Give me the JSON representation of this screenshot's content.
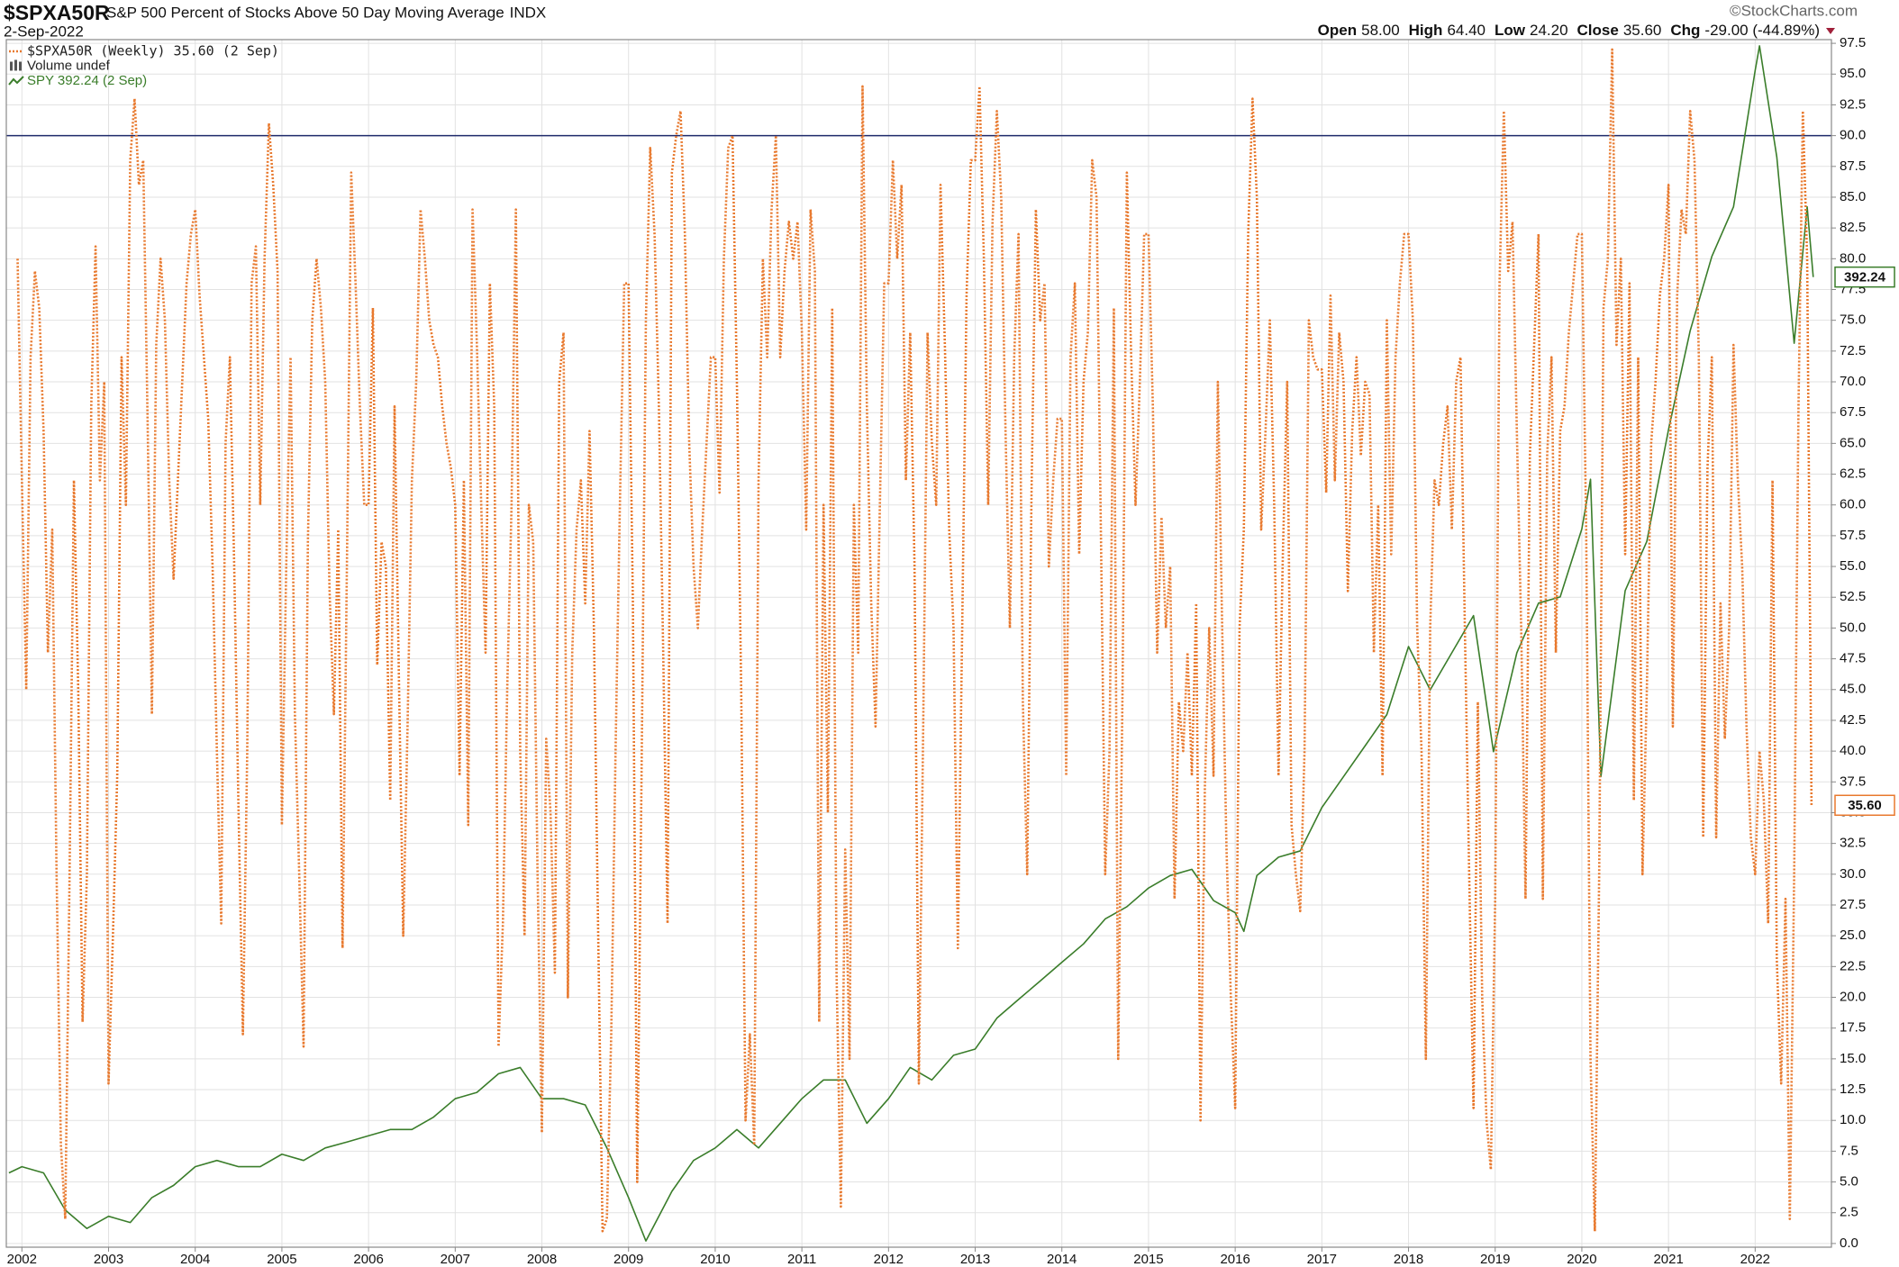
{
  "header": {
    "symbol": "$SPXA50R",
    "name": "S&P 500 Percent of Stocks Above 50 Day Moving Average",
    "exchange": "INDX",
    "date": "2-Sep-2022",
    "credit": "©StockCharts.com",
    "ohlc": [
      {
        "label": "Open",
        "value": "58.00"
      },
      {
        "label": "High",
        "value": "64.40"
      },
      {
        "label": "Low",
        "value": "24.20"
      },
      {
        "label": "Close",
        "value": "35.60"
      },
      {
        "label": "Chg",
        "value": "-29.00 (-44.89%)"
      }
    ]
  },
  "chart_data": {
    "type": "line",
    "grid": true,
    "legend": "top-left",
    "legend_extra": "Volume undef",
    "xlim": [
      2001.82,
      2022.88
    ],
    "xticks": [
      2002,
      2003,
      2004,
      2005,
      2006,
      2007,
      2008,
      2009,
      2010,
      2011,
      2012,
      2013,
      2014,
      2015,
      2016,
      2017,
      2018,
      2019,
      2020,
      2021,
      2022
    ],
    "ylim": [
      -0.3,
      97.8
    ],
    "y2lim": [
      50,
      476
    ],
    "hline": 90,
    "hline_color": "#1f2a6b",
    "yticks": [
      {
        "value": 0,
        "label": "0.0"
      },
      2.5,
      {
        "value": 5,
        "label": "5.0"
      },
      7.5,
      {
        "value": 10,
        "label": "10.0"
      },
      12.5,
      {
        "value": 15,
        "label": "15.0"
      },
      17.5,
      {
        "value": 20,
        "label": "20.0"
      },
      22.5,
      {
        "value": 25,
        "label": "25.0"
      },
      27.5,
      {
        "value": 30,
        "label": "30.0"
      },
      32.5,
      {
        "value": 35,
        "label": "35.0"
      },
      37.5,
      {
        "value": 40,
        "label": "40.0"
      },
      42.5,
      {
        "value": 45,
        "label": "45.0"
      },
      47.5,
      {
        "value": 50,
        "label": "50.0"
      },
      52.5,
      {
        "value": 55,
        "label": "55.0"
      },
      57.5,
      {
        "value": 60,
        "label": "60.0"
      },
      62.5,
      {
        "value": 65,
        "label": "65.0"
      },
      67.5,
      {
        "value": 70,
        "label": "70.0"
      },
      72.5,
      {
        "value": 75,
        "label": "75.0"
      },
      77.5,
      {
        "value": 80,
        "label": "80.0"
      },
      82.5,
      {
        "value": 85,
        "label": "85.0"
      },
      87.5,
      {
        "value": 90,
        "label": "90.0"
      },
      92.5,
      {
        "value": 95,
        "label": "95.0"
      },
      97.5
    ],
    "series": [
      {
        "name": "$SPXA50R (Weekly) 35.60 (2 Sep)",
        "color": "#e8792e",
        "style": "dotted",
        "end_label": "35.60",
        "x": [
          2001.95,
          2002,
          2002.05,
          2002.1,
          2002.15,
          2002.2,
          2002.25,
          2002.3,
          2002.35,
          2002.4,
          2002.45,
          2002.5,
          2002.55,
          2002.6,
          2002.65,
          2002.7,
          2002.75,
          2002.8,
          2002.85,
          2002.9,
          2002.95,
          2003,
          2003.05,
          2003.1,
          2003.15,
          2003.2,
          2003.25,
          2003.3,
          2003.35,
          2003.4,
          2003.45,
          2003.5,
          2003.55,
          2003.6,
          2003.65,
          2003.7,
          2003.75,
          2003.8,
          2003.85,
          2003.9,
          2003.95,
          2004,
          2004.05,
          2004.1,
          2004.15,
          2004.2,
          2004.25,
          2004.3,
          2004.35,
          2004.4,
          2004.45,
          2004.5,
          2004.55,
          2004.6,
          2004.65,
          2004.7,
          2004.75,
          2004.8,
          2004.85,
          2004.9,
          2004.95,
          2005,
          2005.05,
          2005.1,
          2005.15,
          2005.2,
          2005.25,
          2005.3,
          2005.35,
          2005.4,
          2005.45,
          2005.5,
          2005.55,
          2005.6,
          2005.65,
          2005.7,
          2005.75,
          2005.8,
          2005.85,
          2005.9,
          2005.95,
          2006,
          2006.05,
          2006.1,
          2006.15,
          2006.2,
          2006.25,
          2006.3,
          2006.35,
          2006.4,
          2006.45,
          2006.5,
          2006.55,
          2006.6,
          2006.65,
          2006.7,
          2006.75,
          2006.8,
          2006.85,
          2006.9,
          2006.95,
          2007,
          2007.05,
          2007.1,
          2007.15,
          2007.2,
          2007.25,
          2007.3,
          2007.35,
          2007.4,
          2007.45,
          2007.5,
          2007.55,
          2007.6,
          2007.65,
          2007.7,
          2007.75,
          2007.8,
          2007.85,
          2007.9,
          2007.95,
          2008,
          2008.05,
          2008.1,
          2008.15,
          2008.2,
          2008.25,
          2008.3,
          2008.35,
          2008.4,
          2008.45,
          2008.5,
          2008.55,
          2008.6,
          2008.65,
          2008.7,
          2008.75,
          2008.8,
          2008.85,
          2008.9,
          2008.95,
          2009,
          2009.05,
          2009.1,
          2009.15,
          2009.2,
          2009.25,
          2009.3,
          2009.35,
          2009.4,
          2009.45,
          2009.5,
          2009.55,
          2009.6,
          2009.65,
          2009.7,
          2009.75,
          2009.8,
          2009.85,
          2009.9,
          2009.95,
          2010,
          2010.05,
          2010.1,
          2010.15,
          2010.2,
          2010.25,
          2010.3,
          2010.35,
          2010.4,
          2010.45,
          2010.5,
          2010.55,
          2010.6,
          2010.65,
          2010.7,
          2010.75,
          2010.8,
          2010.85,
          2010.9,
          2010.95,
          2011,
          2011.05,
          2011.1,
          2011.15,
          2011.2,
          2011.25,
          2011.3,
          2011.35,
          2011.4,
          2011.45,
          2011.5,
          2011.55,
          2011.6,
          2011.65,
          2011.7,
          2011.75,
          2011.8,
          2011.85,
          2011.9,
          2011.95,
          2012,
          2012.05,
          2012.1,
          2012.15,
          2012.2,
          2012.25,
          2012.3,
          2012.35,
          2012.4,
          2012.45,
          2012.5,
          2012.55,
          2012.6,
          2012.65,
          2012.7,
          2012.75,
          2012.8,
          2012.85,
          2012.9,
          2012.95,
          2013,
          2013.05,
          2013.1,
          2013.15,
          2013.2,
          2013.25,
          2013.3,
          2013.35,
          2013.4,
          2013.45,
          2013.5,
          2013.55,
          2013.6,
          2013.65,
          2013.7,
          2013.75,
          2013.8,
          2013.85,
          2013.9,
          2013.95,
          2014,
          2014.05,
          2014.1,
          2014.15,
          2014.2,
          2014.25,
          2014.3,
          2014.35,
          2014.4,
          2014.45,
          2014.5,
          2014.55,
          2014.6,
          2014.65,
          2014.7,
          2014.75,
          2014.8,
          2014.85,
          2014.9,
          2014.95,
          2015,
          2015.05,
          2015.1,
          2015.15,
          2015.2,
          2015.25,
          2015.3,
          2015.35,
          2015.4,
          2015.45,
          2015.5,
          2015.55,
          2015.6,
          2015.65,
          2015.7,
          2015.75,
          2015.8,
          2015.85,
          2015.9,
          2015.95,
          2016,
          2016.05,
          2016.1,
          2016.15,
          2016.2,
          2016.25,
          2016.3,
          2016.35,
          2016.4,
          2016.45,
          2016.5,
          2016.55,
          2016.6,
          2016.65,
          2016.7,
          2016.75,
          2016.8,
          2016.85,
          2016.9,
          2016.95,
          2017,
          2017.05,
          2017.1,
          2017.15,
          2017.2,
          2017.25,
          2017.3,
          2017.35,
          2017.4,
          2017.45,
          2017.5,
          2017.55,
          2017.6,
          2017.65,
          2017.7,
          2017.75,
          2017.8,
          2017.85,
          2017.9,
          2017.95,
          2018,
          2018.05,
          2018.1,
          2018.15,
          2018.2,
          2018.25,
          2018.3,
          2018.35,
          2018.4,
          2018.45,
          2018.5,
          2018.55,
          2018.6,
          2018.65,
          2018.7,
          2018.75,
          2018.8,
          2018.85,
          2018.9,
          2018.95,
          2019,
          2019.05,
          2019.1,
          2019.15,
          2019.2,
          2019.25,
          2019.3,
          2019.35,
          2019.4,
          2019.45,
          2019.5,
          2019.55,
          2019.6,
          2019.65,
          2019.7,
          2019.75,
          2019.8,
          2019.85,
          2019.9,
          2019.95,
          2020,
          2020.05,
          2020.1,
          2020.15,
          2020.2,
          2020.25,
          2020.3,
          2020.35,
          2020.4,
          2020.45,
          2020.5,
          2020.55,
          2020.6,
          2020.65,
          2020.7,
          2020.75,
          2020.8,
          2020.85,
          2020.9,
          2020.95,
          2021,
          2021.05,
          2021.1,
          2021.15,
          2021.2,
          2021.25,
          2021.3,
          2021.35,
          2021.4,
          2021.45,
          2021.5,
          2021.55,
          2021.6,
          2021.65,
          2021.7,
          2021.75,
          2021.8,
          2021.85,
          2021.9,
          2021.95,
          2022,
          2022.05,
          2022.1,
          2022.15,
          2022.2,
          2022.25,
          2022.3,
          2022.35,
          2022.4,
          2022.45,
          2022.5,
          2022.55,
          2022.6,
          2022.65
        ],
        "values": [
          80,
          62,
          45,
          72,
          79,
          76,
          66,
          48,
          58,
          30,
          8,
          2,
          30,
          62,
          45,
          18,
          30,
          68,
          81,
          62,
          70,
          13,
          25,
          38,
          72,
          60,
          88,
          93,
          86,
          88,
          67,
          43,
          73,
          80,
          75,
          62,
          54,
          62,
          70,
          78,
          82,
          84,
          77,
          72,
          67,
          55,
          40,
          26,
          65,
          72,
          55,
          35,
          17,
          40,
          78,
          81,
          60,
          80,
          91,
          86,
          79,
          34,
          55,
          72,
          43,
          30,
          16,
          57,
          75,
          80,
          76,
          70,
          53,
          43,
          58,
          24,
          55,
          87,
          78,
          68,
          60,
          60,
          76,
          47,
          57,
          55,
          36,
          68,
          46,
          25,
          42,
          62,
          70,
          84,
          80,
          75,
          73,
          72,
          68,
          65,
          63,
          60,
          38,
          62,
          34,
          84,
          73,
          60,
          48,
          78,
          68,
          16,
          26,
          45,
          60,
          84,
          40,
          25,
          60,
          57,
          30,
          9,
          41,
          35,
          22,
          70,
          74,
          20,
          48,
          58,
          62,
          52,
          66,
          50,
          25,
          1,
          2,
          17,
          40,
          60,
          78,
          78,
          52,
          5,
          38,
          75,
          89,
          82,
          68,
          48,
          26,
          87,
          90,
          92,
          82,
          65,
          55,
          50,
          58,
          65,
          72,
          72,
          61,
          80,
          89,
          90,
          70,
          45,
          10,
          17,
          8,
          62,
          80,
          72,
          84,
          90,
          72,
          79,
          83,
          80,
          83,
          74,
          58,
          84,
          79,
          18,
          60,
          35,
          76,
          22,
          3,
          32,
          15,
          60,
          48,
          94,
          68,
          52,
          42,
          60,
          78,
          78,
          88,
          80,
          86,
          62,
          74,
          55,
          13,
          42,
          74,
          65,
          60,
          86,
          73,
          58,
          50,
          24,
          50,
          77,
          88,
          88,
          94,
          80,
          60,
          83,
          92,
          85,
          66,
          50,
          72,
          82,
          44,
          30,
          61,
          84,
          75,
          78,
          55,
          62,
          67,
          67,
          38,
          72,
          78,
          56,
          70,
          74,
          88,
          85,
          58,
          30,
          40,
          76,
          15,
          45,
          87,
          72,
          60,
          70,
          82,
          82,
          68,
          48,
          59,
          50,
          55,
          28,
          44,
          40,
          48,
          38,
          52,
          10,
          37,
          50,
          38,
          70,
          50,
          32,
          20,
          11,
          50,
          58,
          82,
          93,
          85,
          58,
          66,
          75,
          60,
          38,
          56,
          70,
          34,
          30,
          27,
          40,
          75,
          72,
          71,
          71,
          61,
          77,
          62,
          74,
          70,
          53,
          66,
          72,
          64,
          70,
          69,
          48,
          60,
          38,
          75,
          56,
          72,
          78,
          82,
          82,
          75,
          50,
          40,
          15,
          50,
          62,
          60,
          65,
          68,
          58,
          70,
          72,
          50,
          30,
          11,
          44,
          20,
          10,
          6,
          28,
          78,
          92,
          79,
          83,
          66,
          50,
          28,
          64,
          73,
          82,
          28,
          64,
          72,
          48,
          66,
          68,
          74,
          78,
          82,
          82,
          58,
          15,
          1,
          30,
          76,
          80,
          97,
          73,
          80,
          56,
          78,
          36,
          72,
          30,
          45,
          65,
          70,
          77,
          80,
          86,
          42,
          77,
          84,
          82,
          92,
          88,
          72,
          33,
          63,
          72,
          33,
          52,
          41,
          50,
          73,
          62,
          55,
          42,
          33,
          30,
          40,
          36,
          26,
          62,
          23,
          13,
          28,
          2,
          30,
          68,
          92,
          80,
          35.6
        ]
      },
      {
        "name": "SPY 392.24 (2 Sep)",
        "color": "#3a7d2a",
        "axis": "y2",
        "end_label": "392.24",
        "x": [
          2001.85,
          2002,
          2002.25,
          2002.5,
          2002.75,
          2003,
          2003.25,
          2003.5,
          2003.75,
          2004,
          2004.25,
          2004.5,
          2004.75,
          2005,
          2005.25,
          2005.5,
          2005.75,
          2006,
          2006.25,
          2006.5,
          2006.75,
          2007,
          2007.25,
          2007.5,
          2007.75,
          2008,
          2008.25,
          2008.5,
          2008.75,
          2009,
          2009.2,
          2009.5,
          2009.75,
          2010,
          2010.25,
          2010.5,
          2010.75,
          2011,
          2011.25,
          2011.5,
          2011.75,
          2012,
          2012.25,
          2012.5,
          2012.75,
          2013,
          2013.25,
          2013.5,
          2013.75,
          2014,
          2014.25,
          2014.5,
          2014.75,
          2015,
          2015.25,
          2015.5,
          2015.75,
          2016,
          2016.1,
          2016.25,
          2016.5,
          2016.75,
          2017,
          2017.25,
          2017.5,
          2017.75,
          2018,
          2018.25,
          2018.5,
          2018.75,
          2018.98,
          2019.25,
          2019.5,
          2019.75,
          2020,
          2020.1,
          2020.22,
          2020.5,
          2020.75,
          2021,
          2021.25,
          2021.5,
          2021.75,
          2022,
          2022.05,
          2022.25,
          2022.45,
          2022.6,
          2022.67
        ],
        "values": [
          76.2,
          78.4,
          76.2,
          63.1,
          56.6,
          60.9,
          58.7,
          67.5,
          71.8,
          78.4,
          80.6,
          78.4,
          78.4,
          82.8,
          80.6,
          85.0,
          87.1,
          89.3,
          91.5,
          91.5,
          95.9,
          102.4,
          104.6,
          111.2,
          113.4,
          102.4,
          102.4,
          100.2,
          85.0,
          67.5,
          52.2,
          69.7,
          80.6,
          85.0,
          91.5,
          85.0,
          93.7,
          102.4,
          109.0,
          109.0,
          93.7,
          102.4,
          113.4,
          109.0,
          117.7,
          119.9,
          130.8,
          137.4,
          143.9,
          150.5,
          157.0,
          165.8,
          170.1,
          176.7,
          181.1,
          183.3,
          172.3,
          168.0,
          161.4,
          181.1,
          187.6,
          189.8,
          205.1,
          216.0,
          226.9,
          237.9,
          261.9,
          246.6,
          259.7,
          272.8,
          224.8,
          259.7,
          277.2,
          279.4,
          303.4,
          320.9,
          216.0,
          281.6,
          299.0,
          338.4,
          373.3,
          399.5,
          417.0,
          465.1,
          473.8,
          434.5,
          368.9,
          417.0,
          392.24
        ]
      }
    ]
  }
}
